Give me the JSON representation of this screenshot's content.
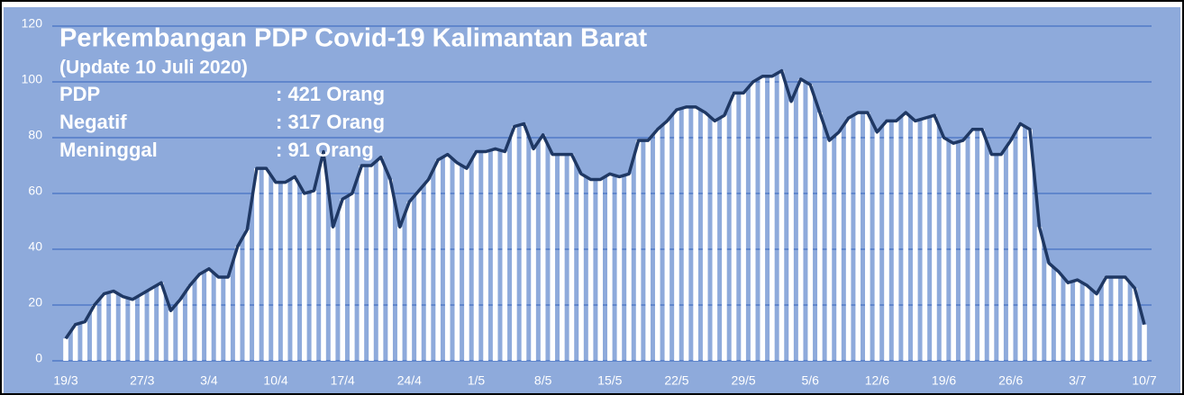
{
  "chart_data": {
    "type": "bar-line",
    "title": "Perkembangan PDP Covid-19 Kalimantan Barat",
    "subtitle": "(Update 10 Juli 2020)",
    "annotations": [
      [
        "PDP",
        ": 421 Orang"
      ],
      [
        "Negatif",
        ": 317 Orang"
      ],
      [
        "Meninggal",
        ": 91  Orang"
      ]
    ],
    "categories": [
      "19/3",
      null,
      null,
      null,
      null,
      null,
      null,
      null,
      "27/3",
      null,
      null,
      null,
      null,
      null,
      null,
      "3/4",
      null,
      null,
      null,
      null,
      null,
      null,
      "10/4",
      null,
      null,
      null,
      null,
      null,
      null,
      "17/4",
      null,
      null,
      null,
      null,
      null,
      null,
      "24/4",
      null,
      null,
      null,
      null,
      null,
      null,
      "1/5",
      null,
      null,
      null,
      null,
      null,
      null,
      "8/5",
      null,
      null,
      null,
      null,
      null,
      null,
      "15/5",
      null,
      null,
      null,
      null,
      null,
      null,
      "22/5",
      null,
      null,
      null,
      null,
      null,
      null,
      "29/5",
      null,
      null,
      null,
      null,
      null,
      null,
      "5/6",
      null,
      null,
      null,
      null,
      null,
      null,
      "12/6",
      null,
      null,
      null,
      null,
      null,
      null,
      "19/6",
      null,
      null,
      null,
      null,
      null,
      null,
      "26/6",
      null,
      null,
      null,
      null,
      null,
      null,
      "3/7",
      null,
      null,
      null,
      null,
      null,
      null,
      "10/7"
    ],
    "values": [
      8,
      13,
      14,
      20,
      24,
      25,
      23,
      22,
      24,
      26,
      28,
      18,
      22,
      27,
      31,
      33,
      30,
      30,
      41,
      47,
      69,
      69,
      64,
      64,
      66,
      60,
      61,
      75,
      48,
      58,
      60,
      70,
      70,
      73,
      65,
      48,
      57,
      61,
      65,
      72,
      74,
      71,
      69,
      75,
      75,
      76,
      75,
      84,
      85,
      76,
      81,
      74,
      74,
      74,
      67,
      65,
      65,
      67,
      66,
      67,
      79,
      79,
      83,
      86,
      90,
      91,
      91,
      89,
      86,
      88,
      96,
      96,
      100,
      102,
      102,
      104,
      93,
      101,
      99,
      89,
      79,
      82,
      87,
      89,
      89,
      82,
      86,
      86,
      89,
      86,
      87,
      88,
      80,
      78,
      79,
      83,
      83,
      74,
      74,
      79,
      85,
      83,
      48,
      35,
      32,
      28,
      29,
      27,
      24,
      30,
      30,
      30,
      26,
      13
    ],
    "bar_color": "#ffffff",
    "line_color": "#1f3864",
    "background": "#8eaadb",
    "grid_color": "#4472c4",
    "ylim": [
      0,
      120
    ],
    "yticks": [
      0,
      20,
      40,
      60,
      80,
      100,
      120
    ],
    "grid": true
  }
}
